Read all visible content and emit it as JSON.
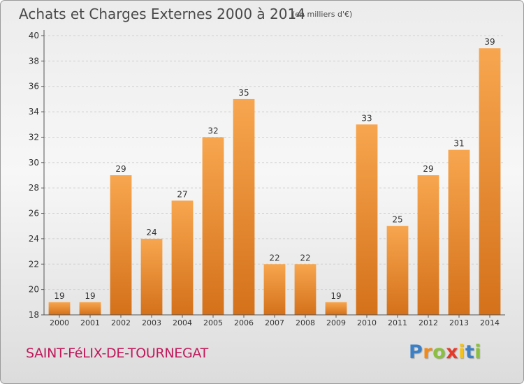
{
  "title": "Achats et Charges Externes 2000 à 2014",
  "subtitle": "(en milliers d'€)",
  "commune": "SAINT-FéLIX-DE-TOURNEGAT",
  "brand": {
    "letters": [
      "P",
      "r",
      "o",
      "x",
      "i",
      "t",
      "i"
    ],
    "colors": [
      "#3b7fc4",
      "#f08a1c",
      "#8bbf3f",
      "#e53a2a",
      "#f2c21b",
      "#3b7fc4",
      "#8bbf3f"
    ]
  },
  "colors": {
    "bar_light": "#f7a64f",
    "bar_dark": "#d4711a",
    "axis": "#555555",
    "grid": "#d0d0d0",
    "text": "#333333"
  },
  "chart_data": {
    "type": "bar",
    "categories": [
      "2000",
      "2001",
      "2002",
      "2003",
      "2004",
      "2005",
      "2006",
      "2007",
      "2008",
      "2009",
      "2010",
      "2011",
      "2012",
      "2013",
      "2014"
    ],
    "values": [
      19,
      19,
      29,
      24,
      27,
      32,
      35,
      22,
      22,
      19,
      33,
      25,
      29,
      31,
      39
    ],
    "data_labels": [
      "19",
      "19",
      "29",
      "24",
      "27",
      "32",
      "35",
      "22",
      "22",
      "19",
      "33",
      "25",
      "29",
      "31",
      "39"
    ],
    "y_ticks": [
      "18",
      "20",
      "22",
      "24",
      "26",
      "28",
      "30",
      "32",
      "34",
      "36",
      "38",
      "40"
    ],
    "ylim": [
      18,
      40
    ],
    "grid": "horizontal dashed",
    "legend": "none"
  }
}
